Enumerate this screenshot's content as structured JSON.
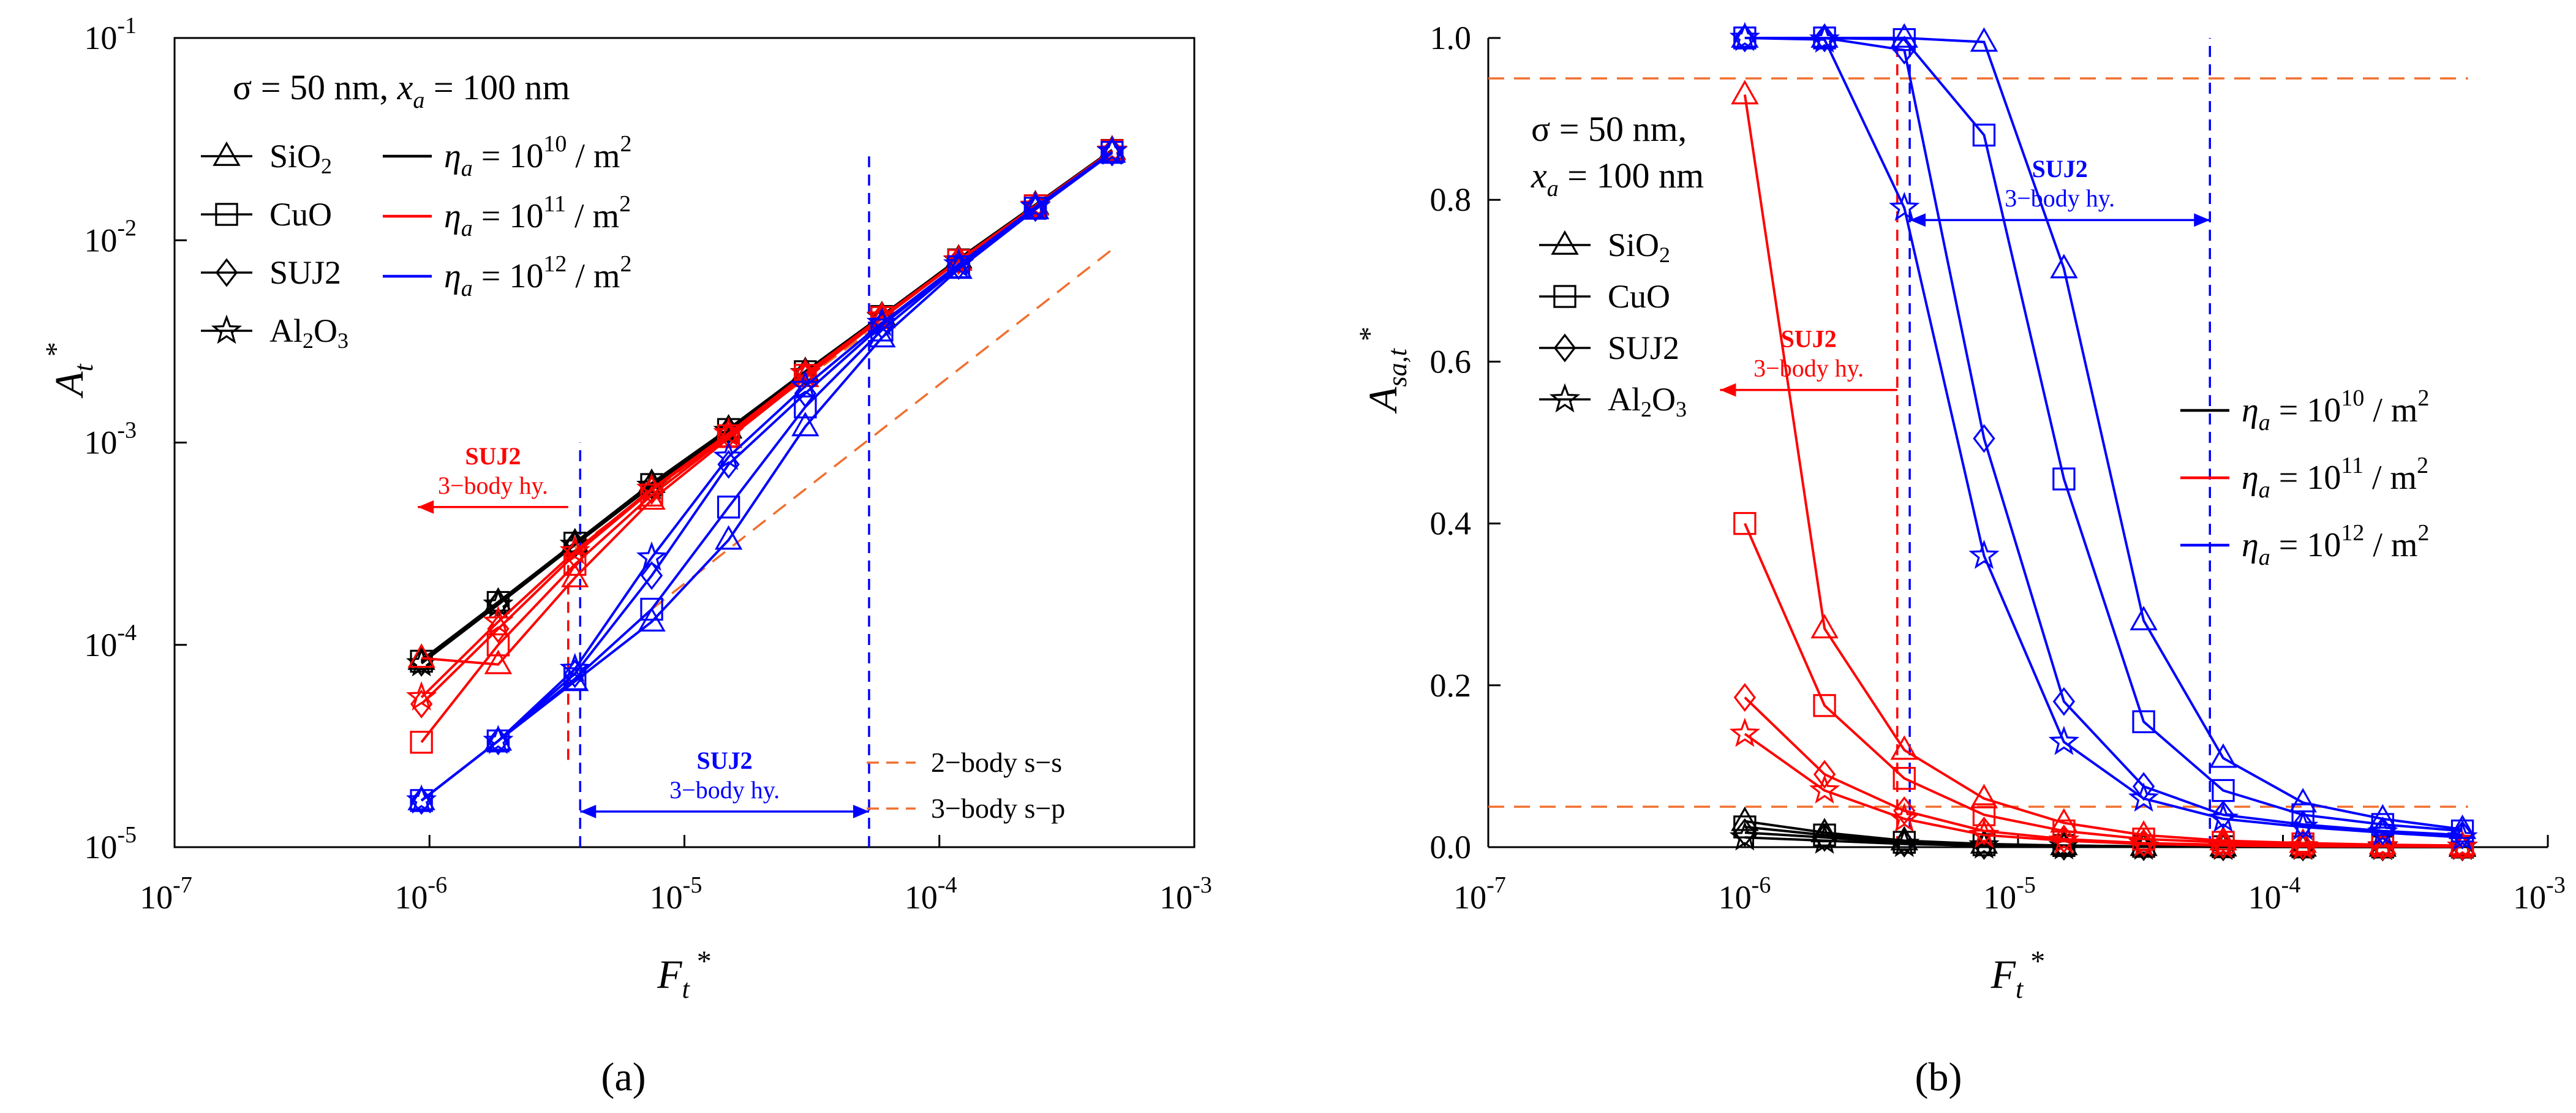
{
  "figure": {
    "panel_a_label": "(a)",
    "panel_b_label": "(b)"
  },
  "chart_data": [
    {
      "type": "line",
      "panel": "a",
      "xscale": "log",
      "yscale": "log",
      "xlim": [
        1e-07,
        0.001
      ],
      "ylim": [
        1e-05,
        0.1
      ],
      "xlabel": "Ft*",
      "ylabel": "At*",
      "xticks": [
        1e-07,
        1e-06,
        1e-05,
        0.0001,
        0.001
      ],
      "xtick_exponents": [
        "-7",
        "-6",
        "-5",
        "-4",
        "-3"
      ],
      "yticks": [
        1e-05,
        0.0001,
        0.001,
        0.01,
        0.1
      ],
      "ytick_exponents": [
        "-5",
        "-4",
        "-3",
        "-2",
        "-1"
      ],
      "condition_text": "σ = 50 nm, xa = 100 nm",
      "x": [
        9.3e-07,
        1.86e-06,
        3.72e-06,
        7.44e-06,
        1.49e-05,
        2.98e-05,
        5.95e-05,
        0.000119,
        0.000238,
        0.000476
      ],
      "series": [
        {
          "name": "SiO2, ηa = 10^10",
          "material": "SiO2",
          "density": "1e10",
          "color": "#000000",
          "marker": "triangle",
          "values": [
            8.4e-05,
            0.000163,
            0.00032,
            0.00063,
            0.00117,
            0.00225,
            0.00425,
            0.0081,
            0.015,
            0.028
          ]
        },
        {
          "name": "CuO, ηa = 10^10",
          "material": "CuO",
          "density": "1e10",
          "color": "#000000",
          "marker": "square",
          "values": [
            8.3e-05,
            0.000162,
            0.000318,
            0.00062,
            0.00116,
            0.00224,
            0.0042,
            0.008,
            0.0148,
            0.0278
          ]
        },
        {
          "name": "SUJ2, ηa = 10^10",
          "material": "SUJ2",
          "density": "1e10",
          "color": "#000000",
          "marker": "diamond",
          "values": [
            8.2e-05,
            0.00016,
            0.000315,
            0.000615,
            0.00115,
            0.00222,
            0.00418,
            0.00795,
            0.0147,
            0.0276
          ]
        },
        {
          "name": "Al2O3, ηa = 10^10",
          "material": "Al2O3",
          "density": "1e10",
          "color": "#000000",
          "marker": "star",
          "values": [
            8.1e-05,
            0.000158,
            0.000312,
            0.00061,
            0.00114,
            0.0022,
            0.00415,
            0.0079,
            0.0146,
            0.0275
          ]
        },
        {
          "name": "SiO2, ηa = 10^11",
          "material": "SiO2",
          "density": "1e11",
          "color": "#ff0000",
          "marker": "triangle",
          "values": [
            8.6e-05,
            8e-05,
            0.000215,
            0.00052,
            0.00105,
            0.0021,
            0.0041,
            0.0079,
            0.0148,
            0.0277
          ]
        },
        {
          "name": "CuO, ηa = 10^11",
          "material": "CuO",
          "density": "1e11",
          "color": "#ff0000",
          "marker": "square",
          "values": [
            3.3e-05,
            0.0001,
            0.00025,
            0.00055,
            0.00108,
            0.00215,
            0.00415,
            0.00795,
            0.0148,
            0.0277
          ]
        },
        {
          "name": "SUJ2, ηa = 10^11",
          "material": "SUJ2",
          "density": "1e11",
          "color": "#ff0000",
          "marker": "diamond",
          "values": [
            5.1e-05,
            0.00012,
            0.00028,
            0.00058,
            0.0011,
            0.00218,
            0.00418,
            0.00795,
            0.0148,
            0.0277
          ]
        },
        {
          "name": "Al2O3, ηa = 10^11",
          "material": "Al2O3",
          "density": "1e11",
          "color": "#ff0000",
          "marker": "star",
          "values": [
            5.5e-05,
            0.00013,
            0.00029,
            0.00059,
            0.00111,
            0.00219,
            0.00419,
            0.00795,
            0.0148,
            0.0277
          ]
        },
        {
          "name": "SiO2, ηa = 10^12",
          "material": "SiO2",
          "density": "1e12",
          "color": "#0000ff",
          "marker": "triangle",
          "values": [
            1.7e-05,
            3.35e-05,
            6.6e-05,
            0.00013,
            0.00033,
            0.0012,
            0.0033,
            0.0072,
            0.0142,
            0.027
          ]
        },
        {
          "name": "CuO, ηa = 10^12",
          "material": "CuO",
          "density": "1e12",
          "color": "#0000ff",
          "marker": "square",
          "values": [
            1.7e-05,
            3.35e-05,
            6.8e-05,
            0.00015,
            0.00048,
            0.0015,
            0.0036,
            0.0074,
            0.0144,
            0.0272
          ]
        },
        {
          "name": "SUJ2, ηa = 10^12",
          "material": "SUJ2",
          "density": "1e12",
          "color": "#0000ff",
          "marker": "diamond",
          "values": [
            1.7e-05,
            3.35e-05,
            7.2e-05,
            0.00022,
            0.00078,
            0.00175,
            0.0038,
            0.0075,
            0.0145,
            0.0273
          ]
        },
        {
          "name": "Al2O3, ηa = 10^12",
          "material": "Al2O3",
          "density": "1e12",
          "color": "#0000ff",
          "marker": "star",
          "values": [
            1.7e-05,
            3.35e-05,
            7.6e-05,
            0.00027,
            0.00085,
            0.0019,
            0.0039,
            0.0076,
            0.0146,
            0.0274
          ]
        }
      ],
      "reference_lines": [
        {
          "name": "2-body s-s",
          "label": "2−body s−s",
          "color": "#f07030",
          "points": [
            [
              3.72e-06,
              0.0003
            ],
            [
              0.000476,
              0.027
            ]
          ]
        },
        {
          "name": "3-body s-p",
          "label": "3−body s−p",
          "color": "#f07030",
          "points": [
            [
              7.44e-06,
              0.00015
            ],
            [
              0.000476,
              0.009
            ]
          ]
        }
      ],
      "vlines": [
        {
          "x": 3.5e-06,
          "y0": 2.7e-05,
          "y1": 0.00026,
          "color": "#ff0000"
        },
        {
          "x": 3.9e-06,
          "y0": 1e-05,
          "y1": 0.001,
          "color": "#0000ff"
        },
        {
          "x": 5.3e-05,
          "y0": 1e-05,
          "y1": 0.026,
          "color": "#0000ff"
        }
      ],
      "annotations": [
        {
          "title": "SUJ2",
          "text": "3−body hy.",
          "color": "#ff0000",
          "arrow": "left",
          "x0": 3.5e-06,
          "x1": 9e-07,
          "y": 0.00048
        },
        {
          "title": "SUJ2",
          "text": "3−body hy.",
          "color": "#0000ff",
          "arrow": "both",
          "x0": 3.9e-06,
          "x1": 5.3e-05,
          "y": 1.5e-05
        }
      ],
      "legend": {
        "materials": [
          "SiO2",
          "CuO",
          "SUJ2",
          "Al2O3"
        ],
        "densities": [
          "ηa = 10^10 / m2",
          "ηa = 10^11 / m2",
          "ηa = 10^12 / m2"
        ]
      }
    },
    {
      "type": "line",
      "panel": "b",
      "xscale": "log",
      "yscale": "linear",
      "xlim": [
        1e-07,
        0.001
      ],
      "ylim": [
        0,
        1.0
      ],
      "xlabel": "Ft*",
      "ylabel": "Asa,t*",
      "xticks": [
        1e-07,
        1e-06,
        1e-05,
        0.0001,
        0.001
      ],
      "xtick_exponents": [
        "-7",
        "-6",
        "-5",
        "-4",
        "-3"
      ],
      "yticks": [
        0.0,
        0.2,
        0.4,
        0.6,
        0.8,
        1.0
      ],
      "ytick_labels": [
        "0.0",
        "0.2",
        "0.4",
        "0.6",
        "0.8",
        "1.0"
      ],
      "condition_text": "σ = 50 nm, xa = 100 nm",
      "x": [
        9.3e-07,
        1.86e-06,
        3.72e-06,
        7.44e-06,
        1.49e-05,
        2.98e-05,
        5.95e-05,
        0.000119,
        0.000238,
        0.000476
      ],
      "series": [
        {
          "name": "SiO2, ηa = 10^10",
          "material": "SiO2",
          "density": "1e10",
          "color": "#000000",
          "marker": "triangle",
          "values": [
            0.032,
            0.018,
            0.008,
            0.004,
            0.002,
            0.001,
            0.0005,
            0.0003,
            0.0002,
            0.0001
          ]
        },
        {
          "name": "CuO, ηa = 10^10",
          "material": "CuO",
          "density": "1e10",
          "color": "#000000",
          "marker": "square",
          "values": [
            0.025,
            0.015,
            0.006,
            0.003,
            0.002,
            0.001,
            0.0005,
            0.0003,
            0.0002,
            0.0001
          ]
        },
        {
          "name": "SUJ2, ηa = 10^10",
          "material": "SUJ2",
          "density": "1e10",
          "color": "#000000",
          "marker": "diamond",
          "values": [
            0.018,
            0.012,
            0.005,
            0.002,
            0.001,
            0.0005,
            0.0003,
            0.0002,
            0.0001,
            0.0001
          ]
        },
        {
          "name": "Al2O3, ηa = 10^10",
          "material": "Al2O3",
          "density": "1e10",
          "color": "#000000",
          "marker": "star",
          "values": [
            0.012,
            0.008,
            0.004,
            0.002,
            0.001,
            0.0005,
            0.0003,
            0.0002,
            0.0001,
            0.0001
          ]
        },
        {
          "name": "SiO2, ηa = 10^11",
          "material": "SiO2",
          "density": "1e11",
          "color": "#ff0000",
          "marker": "triangle",
          "values": [
            0.93,
            0.27,
            0.12,
            0.06,
            0.03,
            0.015,
            0.008,
            0.005,
            0.003,
            0.002
          ]
        },
        {
          "name": "CuO, ηa = 10^11",
          "material": "CuO",
          "density": "1e11",
          "color": "#ff0000",
          "marker": "square",
          "values": [
            0.4,
            0.175,
            0.085,
            0.04,
            0.02,
            0.01,
            0.006,
            0.004,
            0.002,
            0.001
          ]
        },
        {
          "name": "SUJ2, ηa = 10^11",
          "material": "SUJ2",
          "density": "1e11",
          "color": "#ff0000",
          "marker": "diamond",
          "values": [
            0.185,
            0.09,
            0.045,
            0.02,
            0.01,
            0.005,
            0.003,
            0.002,
            0.001,
            0.001
          ]
        },
        {
          "name": "Al2O3, ηa = 10^11",
          "material": "Al2O3",
          "density": "1e11",
          "color": "#ff0000",
          "marker": "star",
          "values": [
            0.14,
            0.07,
            0.035,
            0.015,
            0.008,
            0.004,
            0.002,
            0.001,
            0.001,
            0.0005
          ]
        },
        {
          "name": "SiO2, ηa = 10^12",
          "material": "SiO2",
          "density": "1e12",
          "color": "#0000ff",
          "marker": "triangle",
          "values": [
            1.0,
            1.0,
            1.0,
            0.995,
            0.715,
            0.28,
            0.11,
            0.055,
            0.035,
            0.022
          ]
        },
        {
          "name": "CuO, ηa = 10^12",
          "material": "CuO",
          "density": "1e12",
          "color": "#0000ff",
          "marker": "square",
          "values": [
            1.0,
            1.0,
            0.998,
            0.88,
            0.455,
            0.155,
            0.07,
            0.04,
            0.028,
            0.02
          ]
        },
        {
          "name": "SUJ2, ηa = 10^12",
          "material": "SUJ2",
          "density": "1e12",
          "color": "#0000ff",
          "marker": "diamond",
          "values": [
            1.0,
            1.0,
            0.985,
            0.505,
            0.18,
            0.075,
            0.04,
            0.028,
            0.02,
            0.015
          ]
        },
        {
          "name": "Al2O3, ηa = 10^12",
          "material": "Al2O3",
          "density": "1e12",
          "color": "#0000ff",
          "marker": "star",
          "values": [
            1.0,
            0.998,
            0.79,
            0.36,
            0.13,
            0.06,
            0.035,
            0.025,
            0.018,
            0.012
          ]
        }
      ],
      "hlines": [
        {
          "y": 0.95,
          "x0": 1e-07,
          "x1": 0.0005,
          "color": "#f07030"
        },
        {
          "y": 0.05,
          "x0": 1e-07,
          "x1": 0.0005,
          "color": "#f07030"
        }
      ],
      "vlines": [
        {
          "x": 3.5e-06,
          "y0": 0.0,
          "y1": 1.0,
          "color": "#ff0000"
        },
        {
          "x": 3.9e-06,
          "y0": 0.0,
          "y1": 1.0,
          "color": "#0000ff"
        },
        {
          "x": 5.3e-05,
          "y0": 0.0,
          "y1": 1.0,
          "color": "#0000ff"
        }
      ],
      "annotations": [
        {
          "title": "SUJ2",
          "text": "3−body hy.",
          "color": "#ff0000",
          "arrow": "left",
          "x0": 3.5e-06,
          "x1": 7.5e-07,
          "y": 0.565
        },
        {
          "title": "SUJ2",
          "text": "3−body hy.",
          "color": "#0000ff",
          "arrow": "both",
          "x0": 3.9e-06,
          "x1": 5.3e-05,
          "y": 0.775
        }
      ],
      "legend": {
        "materials": [
          "SiO2",
          "CuO",
          "SUJ2",
          "Al2O3"
        ],
        "densities": [
          "ηa = 10^10 / m2",
          "ηa = 10^11 / m2",
          "ηa = 10^12 / m2"
        ]
      }
    }
  ]
}
